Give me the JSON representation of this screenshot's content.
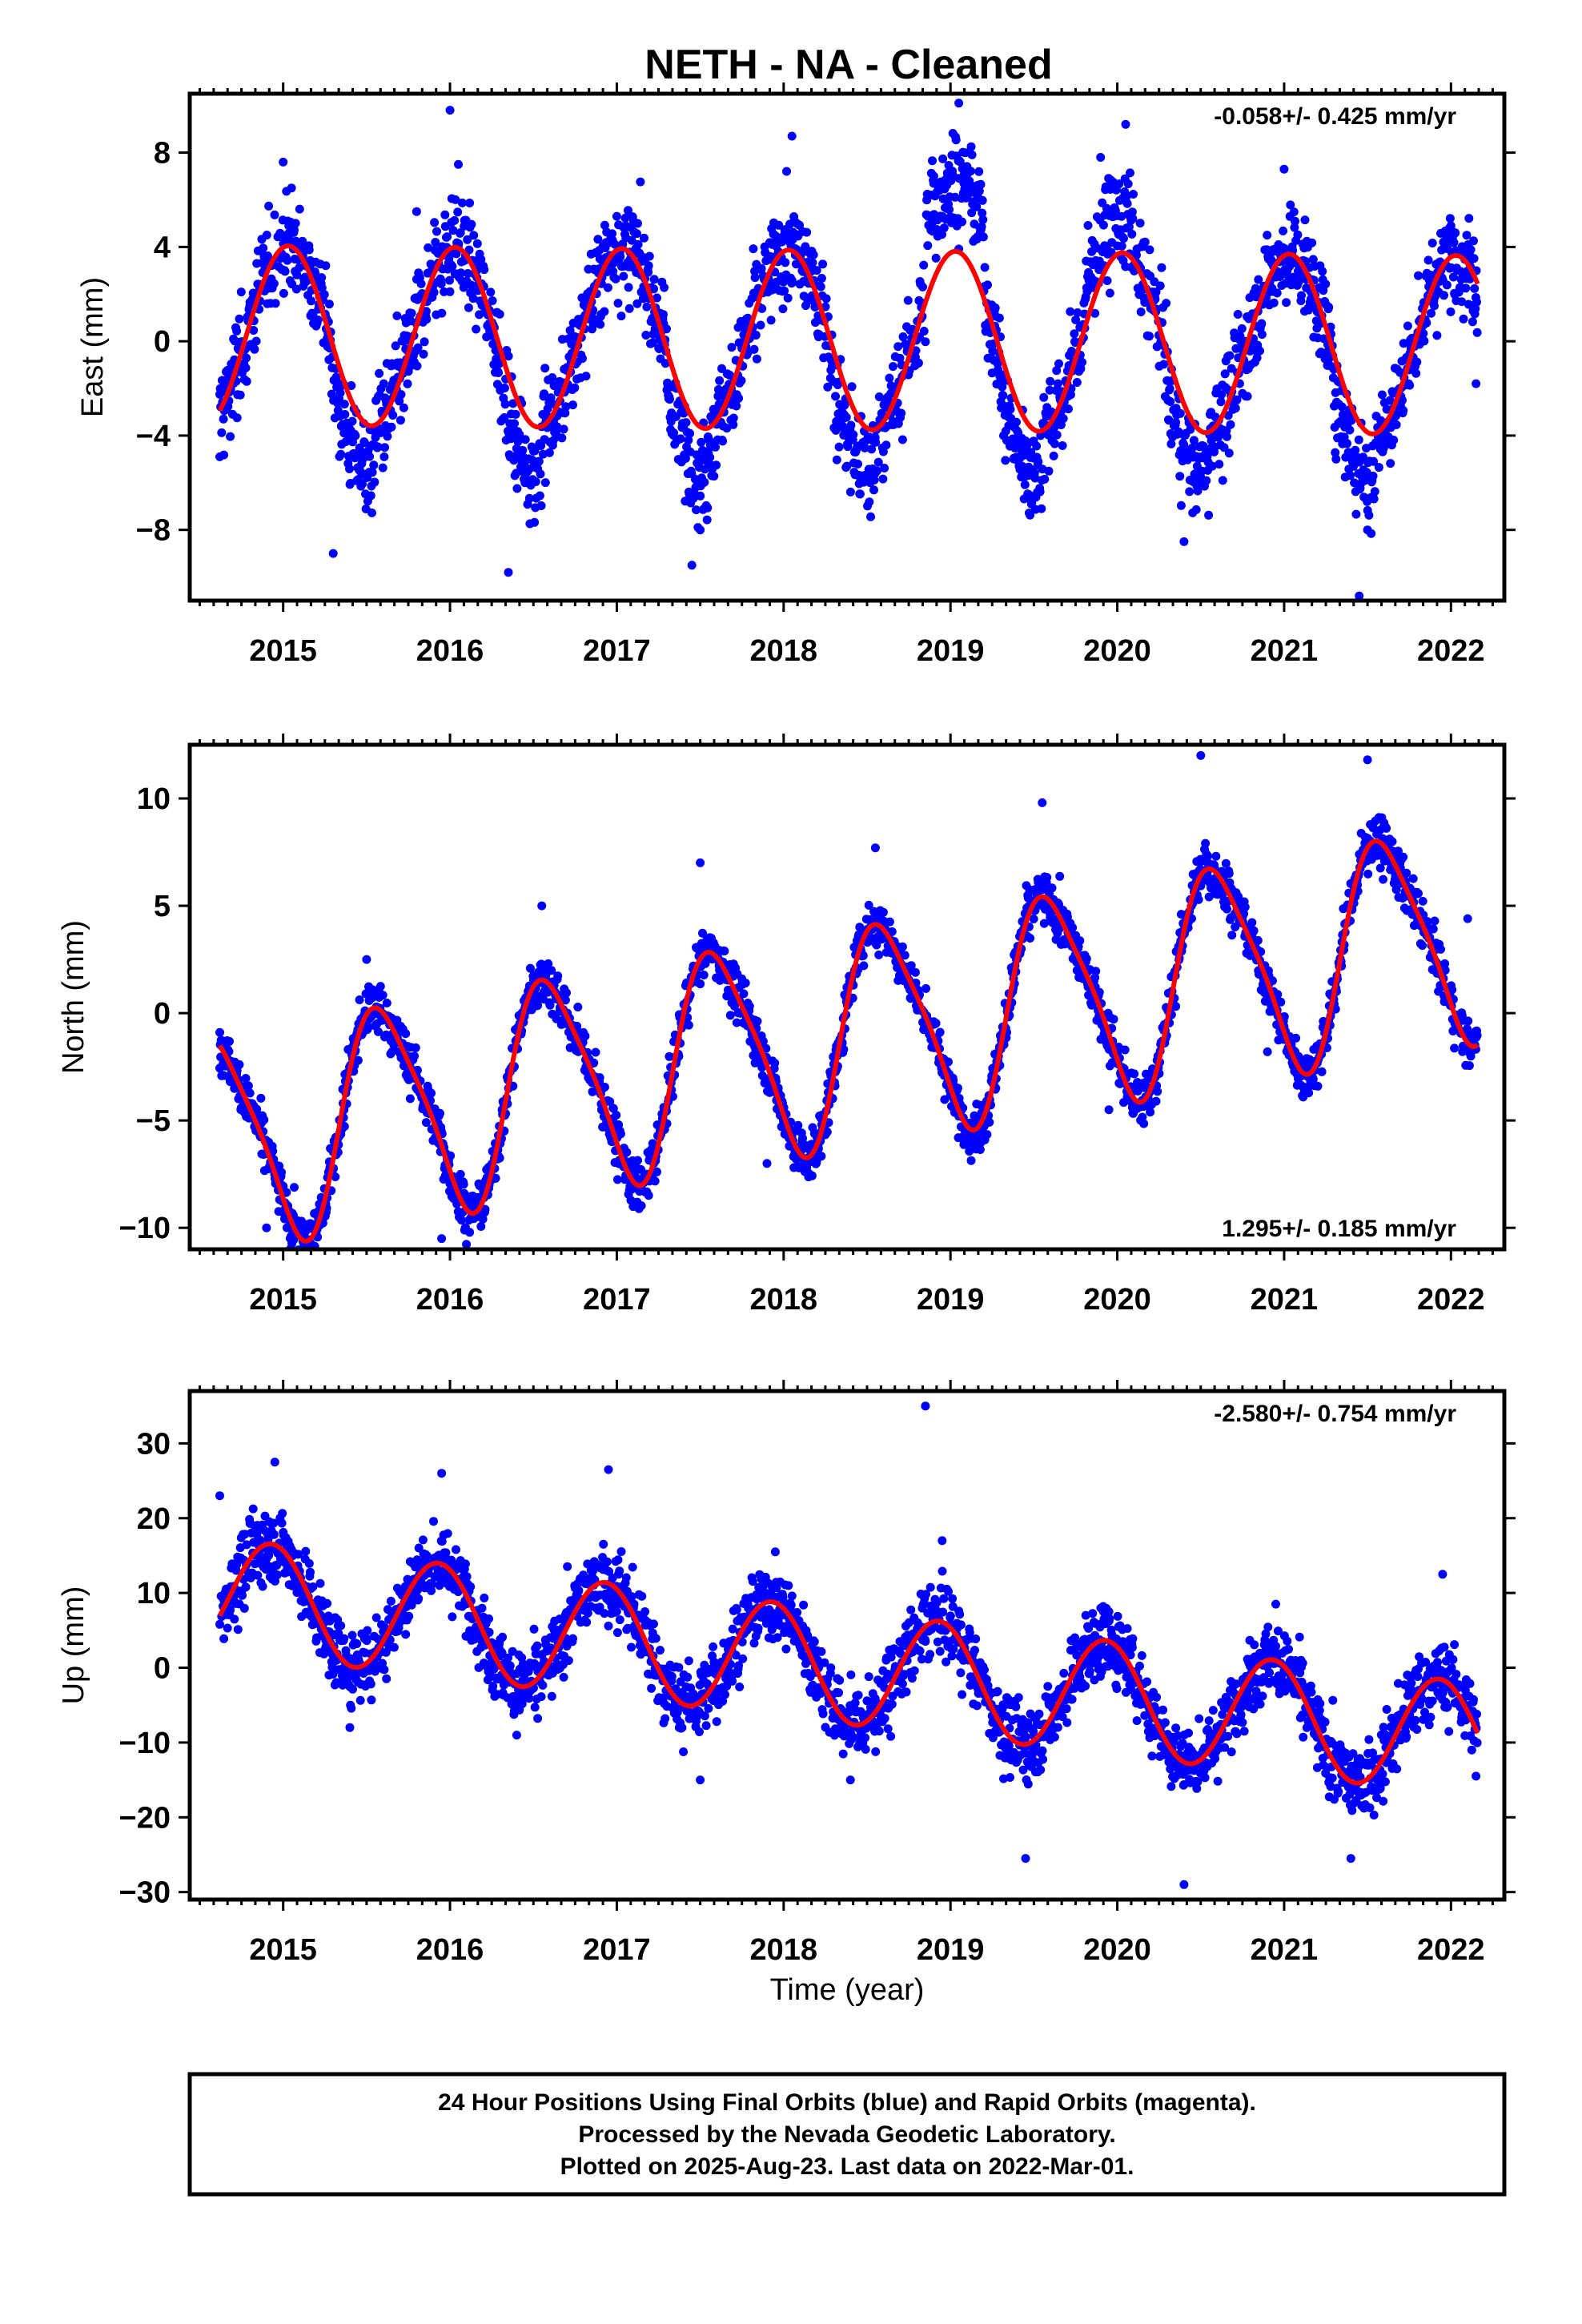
{
  "title": "NETH  - NA - Cleaned",
  "footer": {
    "line1": "24 Hour Positions Using Final Orbits (blue) and Rapid Orbits (magenta).",
    "line2": "Processed by the Nevada Geodetic Laboratory.",
    "line3": "Plotted on 2025-Aug-23. Last data on 2022-Mar-01."
  },
  "colors": {
    "points": "#0000ff",
    "fit": "#ff0000",
    "axes": "#000000"
  },
  "chart_data": [
    {
      "type": "scatter",
      "panel": "east",
      "ylabel": "East (mm)",
      "xlabel": "",
      "rate": "-0.058+/- 0.425 mm/yr",
      "rate_position": "top-right",
      "xlim": [
        2014.44,
        2022.32
      ],
      "ylim": [
        -11,
        10.5
      ],
      "x_ticks": [
        2015,
        2016,
        2017,
        2018,
        2019,
        2020,
        2021,
        2022
      ],
      "y_ticks": [
        -8,
        -4,
        0,
        4,
        8
      ],
      "y_tick_labels": [
        "−8",
        "−4",
        "0",
        "4",
        "8"
      ],
      "fit": {
        "offset": 0.05,
        "trend": -0.058,
        "t0": 2018.4,
        "annual_amp": 3.8,
        "annual_peak": 2015.03
      },
      "series": [
        {
          "values_approx": "daily positions 2014.6–2022.16, scatter around fit with ~1.6 mm noise",
          "x": [
            2014.62,
            2014.8,
            2015.0,
            2015.05,
            2015.3,
            2015.4,
            2015.8,
            2016.0,
            2016.05,
            2016.35,
            2016.45,
            2017.0,
            2017.45,
            2017.5,
            2018.05,
            2018.4,
            2018.9,
            2019.05,
            2019.4,
            2019.9,
            2020.05,
            2020.4,
            2021.0,
            2021.45,
            2021.5,
            2022.0,
            2022.15
          ],
          "y": [
            -4.9,
            1.5,
            7.6,
            6.5,
            -9.0,
            -4.0,
            5.5,
            9.8,
            7.5,
            -9.8,
            -6.0,
            5.3,
            -9.5,
            -8.0,
            8.7,
            -4.2,
            7.0,
            10.1,
            -3.8,
            7.8,
            9.2,
            -8.5,
            7.3,
            -10.8,
            -8.0,
            4.9,
            -1.8
          ]
        }
      ]
    },
    {
      "type": "scatter",
      "panel": "north",
      "ylabel": "North (mm)",
      "xlabel": "",
      "rate": "1.295+/- 0.185 mm/yr",
      "rate_position": "bottom-right",
      "xlim": [
        2014.44,
        2022.32
      ],
      "ylim": [
        -11,
        12.5
      ],
      "x_ticks": [
        2015,
        2016,
        2017,
        2018,
        2019,
        2020,
        2021,
        2022
      ],
      "y_ticks": [
        -10,
        -5,
        0,
        5,
        10
      ],
      "y_tick_labels": [
        "−10",
        "−5",
        "0",
        "5",
        "10"
      ],
      "fit": {
        "offset": -1.0,
        "trend": 1.295,
        "t0": 2018.4,
        "annual_amp": 4.9,
        "annual_peak": 2015.6,
        "semi_amp": 0.9,
        "semi_peak": 2015.45
      },
      "series": [
        {
          "values_approx": "daily positions 2014.6–2022.16, scatter around fit with ~0.9 mm noise",
          "x": [
            2014.62,
            2014.9,
            2015.5,
            2015.95,
            2016.55,
            2017.5,
            2017.9,
            2018.55,
            2019.55,
            2019.95,
            2020.5,
            2020.9,
            2021.5,
            2022.1
          ],
          "y": [
            -0.9,
            -10.0,
            2.5,
            -10.5,
            5.0,
            7.0,
            -7.0,
            7.7,
            9.8,
            -4.5,
            12.0,
            -1.8,
            11.8,
            4.4
          ]
        }
      ]
    },
    {
      "type": "scatter",
      "panel": "up",
      "ylabel": "Up (mm)",
      "xlabel": "Time (year)",
      "rate": "-2.580+/- 0.754 mm/yr",
      "rate_position": "top-right",
      "xlim": [
        2014.44,
        2022.32
      ],
      "ylim": [
        -31,
        37
      ],
      "x_ticks": [
        2015,
        2016,
        2017,
        2018,
        2019,
        2020,
        2021,
        2022
      ],
      "y_ticks": [
        -30,
        -20,
        -10,
        0,
        10,
        20,
        30
      ],
      "y_tick_labels": [
        "−30",
        "−20",
        "−10",
        "0",
        "10",
        "20",
        "30"
      ],
      "fit": {
        "offset": 0.0,
        "trend": -2.58,
        "t0": 2018.4,
        "annual_amp": 7.6,
        "annual_peak": 2014.93
      },
      "series": [
        {
          "values_approx": "daily positions 2014.6–2022.16, scatter around fit with ~4 mm noise",
          "x": [
            2014.62,
            2014.95,
            2015.4,
            2015.95,
            2016.4,
            2016.95,
            2017.5,
            2017.95,
            2018.4,
            2018.85,
            2018.95,
            2019.45,
            2019.95,
            2020.4,
            2020.95,
            2021.4,
            2021.95,
            2022.15
          ],
          "y": [
            23.0,
            27.5,
            -8.0,
            26.0,
            -9.0,
            26.5,
            -15.0,
            15.5,
            -15.0,
            35.0,
            17.0,
            -25.5,
            7.5,
            -29.0,
            8.5,
            -25.5,
            12.5,
            -14.5
          ]
        }
      ]
    }
  ]
}
